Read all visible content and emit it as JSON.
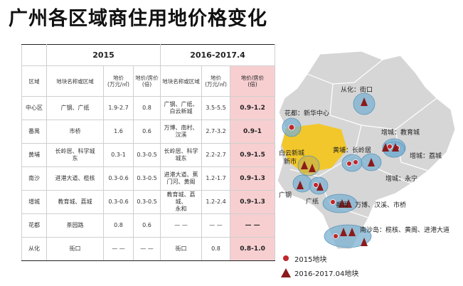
{
  "title": "广州各区域商住用地价格变化",
  "table": {
    "period_2015": "2015",
    "period_2016": "2016-2017.4",
    "sub_headers": [
      "区域",
      "地块名称或区域",
      "地价\n(万元/㎡)",
      "地价/房价\n(倍)",
      "地块名称或区域",
      "地价\n(万元/㎡)",
      "地价/房价\n(倍)"
    ],
    "rows": [
      {
        "area": "中心区",
        "name15": "广钢、广纸",
        "price15": "1.9-2.7",
        "ratio15": "0.8",
        "name16": "广钢、广纸、\n白云新城",
        "price16": "3.5-5.5",
        "ratio16": "0.9-1.2"
      },
      {
        "area": "番禺",
        "name15": "市桥",
        "price15": "1.6",
        "ratio15": "0.6",
        "name16": "万博、南村、\n汉溪",
        "price16": "2.7-3.2",
        "ratio16": "0.9-1"
      },
      {
        "area": "黄埔",
        "name15": "长岭居、科学城\n东",
        "price15": "0.3-1",
        "ratio15": "0.3-0.5",
        "name16": "长岭居、科学\n城东",
        "price16": "2.2-2.7",
        "ratio16": "0.9-1.5"
      },
      {
        "area": "南沙",
        "name15": "进港大道、榄核",
        "price15": "0.3-0.6",
        "ratio15": "0.3-0.5",
        "name16": "进港大道、蕉\n门河、黄阁",
        "price16": "1.2-1.7",
        "ratio16": "0.9-1.3"
      },
      {
        "area": "增城",
        "name15": "教育城、荔城",
        "price15": "0.3-0.6",
        "ratio15": "0.3-0.5",
        "name16": "教育城、荔城、\n永和",
        "price16": "1.2-2.4",
        "ratio16": "0.9-1.3"
      },
      {
        "area": "花都",
        "name15": "茶园路",
        "price15": "0.8",
        "ratio15": "0.6",
        "name16": "— —",
        "price16": "— —",
        "ratio16": "— —"
      },
      {
        "area": "从化",
        "name15": "街口",
        "price15": "— —",
        "ratio15": "— —",
        "name16": "街口",
        "price16": "0.8",
        "ratio16": "0.8-1.0"
      }
    ]
  },
  "map": {
    "labels": {
      "conghua": "从化：街口",
      "huadu": "花都：新华中心",
      "zengcheng_edu": "增城：教育城",
      "zengcheng_licheng": "增城：荔城",
      "zengcheng_yonghe": "增城：永宁",
      "baiyun_1": "白云新城",
      "baiyun_2": "新市",
      "huangpu": "黄埔：长岭居",
      "guanggang": "广钢",
      "guangzhi": "广纸",
      "panyu": "番禺：万博、汉溪、市桥",
      "nansha": "南沙岛：榄核、黄阁、进港大道"
    },
    "colors": {
      "land": "#d6d6d6",
      "highlight": "#f5c518",
      "bubble": "#7bb0d0",
      "marker_2015": "#c0272d",
      "marker_2016": "#8b1a1a"
    }
  },
  "legend": {
    "item_2015": "2015地块",
    "item_2016": "2016-2017.04地块"
  }
}
